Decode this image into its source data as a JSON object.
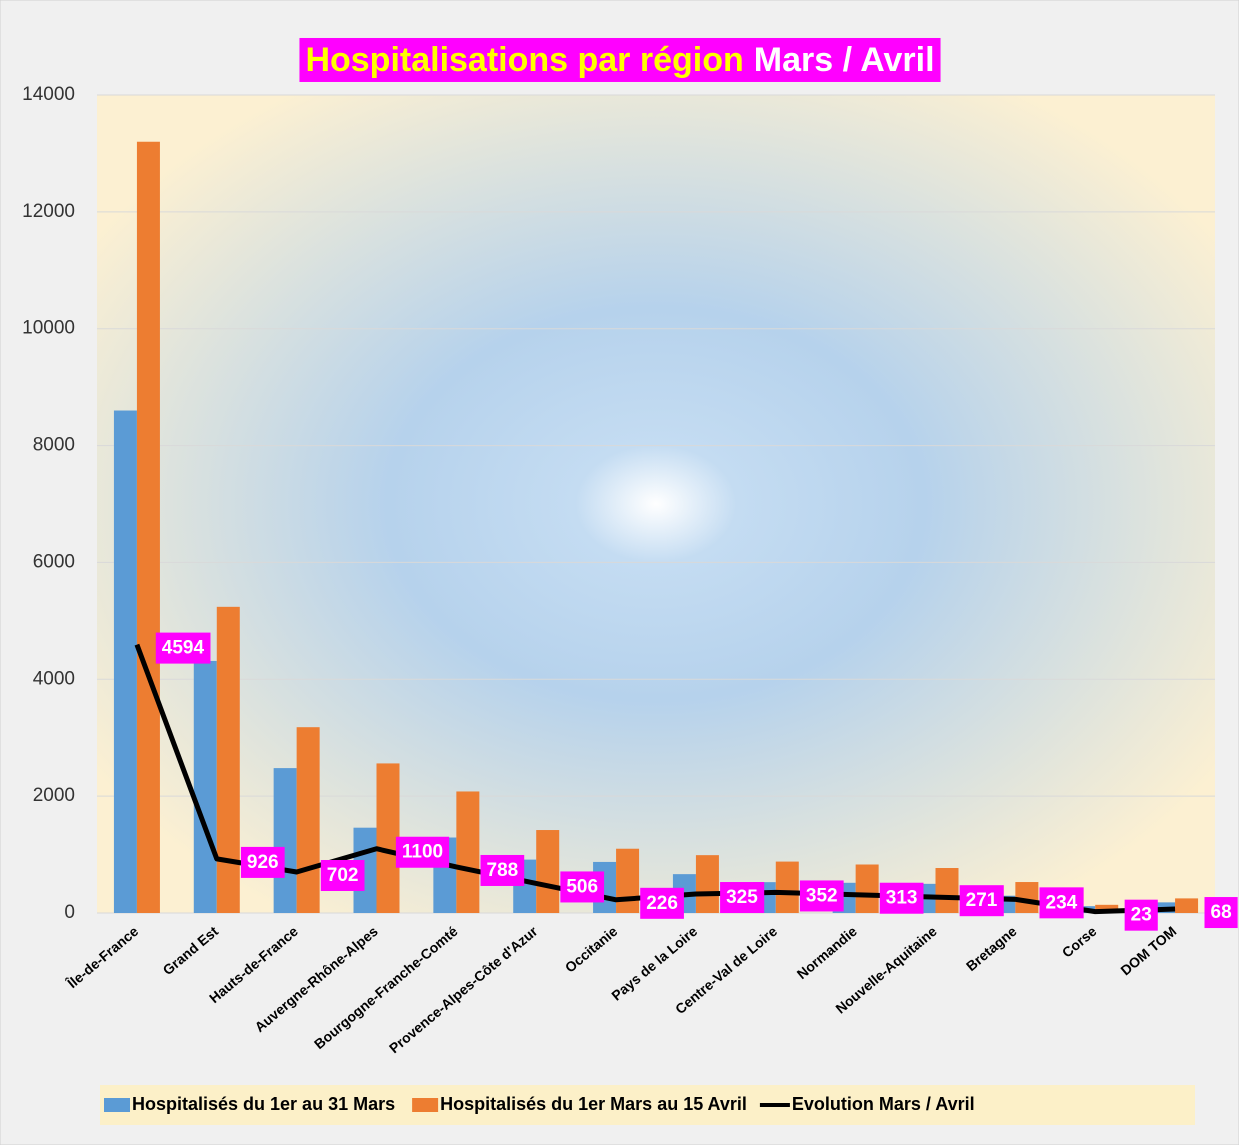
{
  "chart_data": {
    "type": "bar",
    "title": [
      "Hospitalisations par région",
      "Mars / Avril"
    ],
    "categories": [
      "Île-de-France",
      "Grand Est",
      "Hauts-de-France",
      "Auvergne-Rhône-Alpes",
      "Bourgogne-Franche-Comté",
      "Provence-Alpes-Côte d'Azur",
      "Occitanie",
      "Pays de la Loire",
      "Centre-Val de Loire",
      "Normandie",
      "Nouvelle-Aquitaine",
      "Bretagne",
      "Corse",
      "DOM TOM"
    ],
    "series": [
      {
        "name": "Hospitalisés du 1er au 31 Mars",
        "color": "#5b9bd5",
        "values": [
          8600,
          4314,
          2480,
          1460,
          1292,
          914,
          874,
          665,
          528,
          517,
          499,
          296,
          117,
          182
        ]
      },
      {
        "name": "Hospitalisés du 1er Mars au 15 Avril",
        "color": "#ed7d31",
        "values": [
          13200,
          5240,
          3180,
          2560,
          2080,
          1420,
          1100,
          990,
          880,
          830,
          770,
          530,
          140,
          250
        ]
      },
      {
        "name": "Evolution Mars / Avril",
        "color": "#000000",
        "type": "line",
        "values": [
          4594,
          926,
          702,
          1100,
          788,
          506,
          226,
          325,
          352,
          313,
          271,
          234,
          23,
          68
        ]
      }
    ],
    "ylim": [
      0,
      14000
    ],
    "yticks": [
      0,
      2000,
      4000,
      6000,
      8000,
      10000,
      12000,
      14000
    ],
    "grid": true,
    "legend": "bottom"
  }
}
